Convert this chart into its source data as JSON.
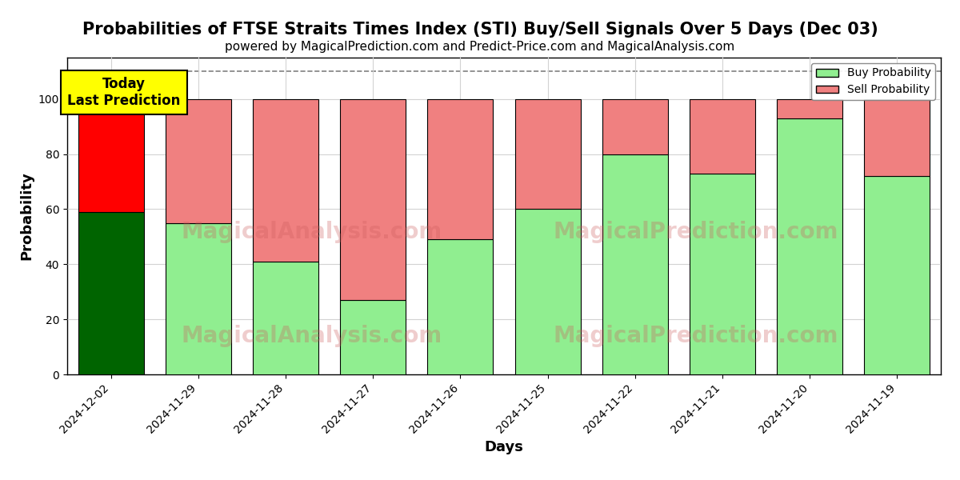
{
  "title": "Probabilities of FTSE Straits Times Index (STI) Buy/Sell Signals Over 5 Days (Dec 03)",
  "subtitle": "powered by MagicalPrediction.com and Predict-Price.com and MagicalAnalysis.com",
  "xlabel": "Days",
  "ylabel": "Probability",
  "categories": [
    "2024-12-02",
    "2024-11-29",
    "2024-11-28",
    "2024-11-27",
    "2024-11-26",
    "2024-11-25",
    "2024-11-22",
    "2024-11-21",
    "2024-11-20",
    "2024-11-19"
  ],
  "buy_values": [
    59,
    55,
    41,
    27,
    49,
    60,
    80,
    73,
    93,
    72
  ],
  "sell_values": [
    41,
    45,
    59,
    73,
    51,
    40,
    20,
    27,
    7,
    28
  ],
  "buy_color_today": "#006400",
  "sell_color_today": "#FF0000",
  "buy_color_normal": "#90EE90",
  "sell_color_normal": "#F08080",
  "bar_edgecolor": "#000000",
  "today_annotation": "Today\nLast Prediction",
  "today_annotation_bg": "#FFFF00",
  "legend_buy_label": "Buy Probability",
  "legend_sell_label": "Sell Probability",
  "ylim": [
    0,
    115
  ],
  "yticks": [
    0,
    20,
    40,
    60,
    80,
    100
  ],
  "dashed_line_y": 110,
  "watermark1": "MagicalAnalysis.com",
  "watermark2": "MagicalPrediction.com",
  "title_fontsize": 15,
  "subtitle_fontsize": 11,
  "axis_label_fontsize": 13,
  "tick_fontsize": 10
}
